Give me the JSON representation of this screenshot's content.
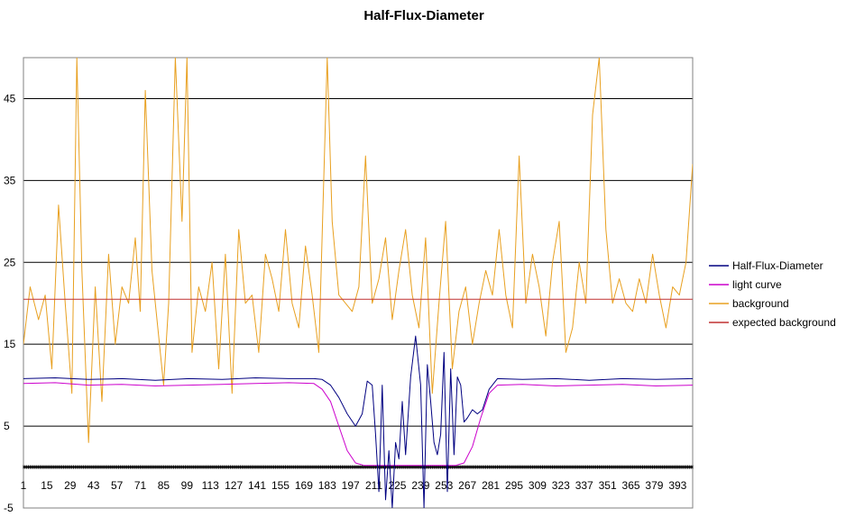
{
  "chart_data": {
    "type": "line",
    "title": "Half-Flux-Diameter",
    "xlabel": "",
    "ylabel": "",
    "ylim": [
      -5,
      50
    ],
    "yticks": [
      -5,
      5,
      15,
      25,
      35,
      45
    ],
    "ytick_labels": [
      "-5",
      "5",
      "15",
      "25",
      "35",
      "45"
    ],
    "xlim": [
      1,
      402
    ],
    "xticks": [
      1,
      15,
      29,
      43,
      57,
      71,
      85,
      99,
      113,
      127,
      141,
      155,
      169,
      183,
      197,
      211,
      225,
      239,
      253,
      267,
      281,
      295,
      309,
      323,
      337,
      351,
      365,
      379,
      393
    ],
    "xtick_labels": [
      "1",
      "15",
      "29",
      "43",
      "57",
      "71",
      "85",
      "99",
      "113",
      "127",
      "141",
      "155",
      "169",
      "183",
      "197",
      "211",
      "225",
      "239",
      "253",
      "267",
      "281",
      "295",
      "309",
      "323",
      "337",
      "351",
      "365",
      "379",
      "393"
    ],
    "grid": "horizontal",
    "legend_position": "right",
    "series": [
      {
        "name": "Half-Flux-Diameter",
        "color": "#000080",
        "x": [
          1,
          20,
          40,
          60,
          80,
          100,
          120,
          140,
          160,
          175,
          180,
          185,
          190,
          195,
          200,
          204,
          207,
          210,
          212,
          214,
          216,
          218,
          220,
          222,
          224,
          226,
          228,
          230,
          233,
          236,
          239,
          241,
          243,
          245,
          247,
          249,
          251,
          253,
          255,
          257,
          259,
          261,
          263,
          265,
          267,
          270,
          273,
          276,
          280,
          285,
          300,
          320,
          340,
          360,
          380,
          402
        ],
        "y": [
          10.8,
          10.9,
          10.7,
          10.8,
          10.6,
          10.8,
          10.7,
          10.9,
          10.8,
          10.8,
          10.7,
          10.0,
          8.5,
          6.5,
          5.0,
          6.5,
          10.5,
          10.0,
          4.0,
          -3.0,
          10.0,
          -4.0,
          2.0,
          -5.0,
          3.0,
          1.0,
          8.0,
          1.5,
          11.0,
          16.0,
          10.0,
          -5.0,
          12.5,
          8.0,
          3.0,
          1.5,
          4.0,
          14.0,
          -3.0,
          12.0,
          1.5,
          11.0,
          10.0,
          5.5,
          6.0,
          7.0,
          6.5,
          7.0,
          9.5,
          10.8,
          10.7,
          10.8,
          10.6,
          10.8,
          10.7,
          10.8
        ]
      },
      {
        "name": "light curve",
        "color": "#cc00cc",
        "x": [
          1,
          20,
          40,
          60,
          80,
          100,
          120,
          140,
          160,
          175,
          180,
          185,
          190,
          195,
          200,
          205,
          260,
          265,
          270,
          275,
          280,
          285,
          300,
          320,
          340,
          360,
          380,
          402
        ],
        "y": [
          10.2,
          10.3,
          10.0,
          10.1,
          9.9,
          10.0,
          10.1,
          10.2,
          10.3,
          10.2,
          9.5,
          8.0,
          5.0,
          2.0,
          0.5,
          0.2,
          0.2,
          0.5,
          2.5,
          6.0,
          9.0,
          10.0,
          10.1,
          9.9,
          10.0,
          10.1,
          9.9,
          10.0
        ]
      },
      {
        "name": "background",
        "color": "#e8a020",
        "x": [
          1,
          5,
          10,
          14,
          18,
          22,
          26,
          30,
          33,
          36,
          40,
          44,
          48,
          52,
          56,
          60,
          64,
          68,
          71,
          74,
          78,
          82,
          85,
          88,
          92,
          96,
          99,
          102,
          106,
          110,
          114,
          118,
          122,
          126,
          130,
          134,
          138,
          142,
          146,
          150,
          154,
          158,
          162,
          166,
          170,
          174,
          178,
          183,
          186,
          190,
          194,
          198,
          202,
          206,
          210,
          214,
          218,
          222,
          226,
          230,
          234,
          238,
          242,
          246,
          250,
          254,
          258,
          262,
          266,
          270,
          274,
          278,
          282,
          286,
          290,
          294,
          298,
          302,
          306,
          310,
          314,
          318,
          322,
          326,
          330,
          334,
          338,
          342,
          346,
          350,
          354,
          358,
          362,
          366,
          370,
          374,
          378,
          382,
          386,
          390,
          394,
          398,
          402
        ],
        "y": [
          15,
          22,
          18,
          21,
          12,
          32,
          20,
          9,
          50,
          24,
          3,
          22,
          8,
          26,
          15,
          22,
          20,
          28,
          19,
          46,
          24,
          16,
          10,
          20,
          50,
          30,
          50,
          14,
          22,
          19,
          25,
          12,
          26,
          9,
          29,
          20,
          21,
          14,
          26,
          23,
          19,
          29,
          20,
          17,
          27,
          21,
          14,
          50,
          30,
          21,
          20,
          19,
          22,
          38,
          20,
          23,
          28,
          18,
          24,
          29,
          21,
          17,
          28,
          9,
          20,
          30,
          12,
          19,
          22,
          15,
          20,
          24,
          21,
          29,
          21,
          17,
          38,
          20,
          26,
          22,
          16,
          25,
          30,
          14,
          17,
          25,
          20,
          43,
          50,
          29,
          20,
          23,
          20,
          19,
          23,
          20,
          26,
          21,
          17,
          22,
          21,
          25,
          37
        ]
      },
      {
        "name": "expected background",
        "color": "#c03030",
        "x": [
          1,
          402
        ],
        "y": [
          20.5,
          20.5
        ]
      }
    ]
  }
}
